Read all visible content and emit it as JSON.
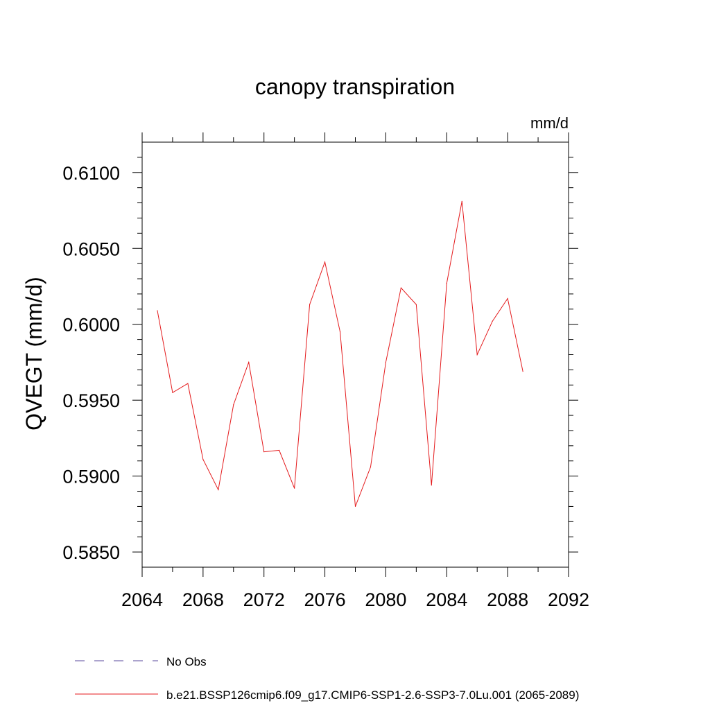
{
  "chart_data": {
    "type": "line",
    "title": "canopy transpiration",
    "units_label": "mm/d",
    "ylabel": "QVEGT  (mm/d)",
    "xlabel": "",
    "xlim": [
      2064,
      2092
    ],
    "ylim": [
      0.584,
      0.612
    ],
    "x_ticks": [
      2064,
      2068,
      2072,
      2076,
      2080,
      2084,
      2088,
      2092
    ],
    "y_ticks": [
      0.585,
      0.59,
      0.595,
      0.6,
      0.605,
      0.61
    ],
    "y_tick_labels": [
      "0.5850",
      "0.5900",
      "0.5950",
      "0.6000",
      "0.6050",
      "0.6100"
    ],
    "x_minor_step": 2,
    "y_minor_step": 0.001,
    "grid": false,
    "legend_position": "bottom",
    "x": [
      2065,
      2066,
      2067,
      2068,
      2069,
      2070,
      2071,
      2072,
      2073,
      2074,
      2075,
      2076,
      2077,
      2078,
      2079,
      2080,
      2081,
      2082,
      2083,
      2084,
      2085,
      2086,
      2087,
      2088,
      2089
    ],
    "series": [
      {
        "name": "b.e21.BSSP126cmip6.f09_g17.CMIP6-SSP1-2.6-SSP3-7.0Lu.001 (2065-2089)",
        "color": "#e41a1c",
        "style": "solid",
        "values": [
          0.6009,
          0.5955,
          0.5961,
          0.5911,
          0.5891,
          0.5947,
          0.5975,
          0.5916,
          0.5917,
          0.5892,
          0.6013,
          0.6041,
          0.5995,
          0.588,
          0.5906,
          0.5975,
          0.6024,
          0.6013,
          0.5894,
          0.6027,
          0.6081,
          0.598,
          0.6002,
          0.6017,
          0.5969
        ]
      }
    ],
    "legend": [
      {
        "label": "No Obs",
        "color": "#5a4a9c",
        "style": "dashed"
      },
      {
        "label": "b.e21.BSSP126cmip6.f09_g17.CMIP6-SSP1-2.6-SSP3-7.0Lu.001 (2065-2089)",
        "color": "#e41a1c",
        "style": "solid"
      }
    ]
  }
}
